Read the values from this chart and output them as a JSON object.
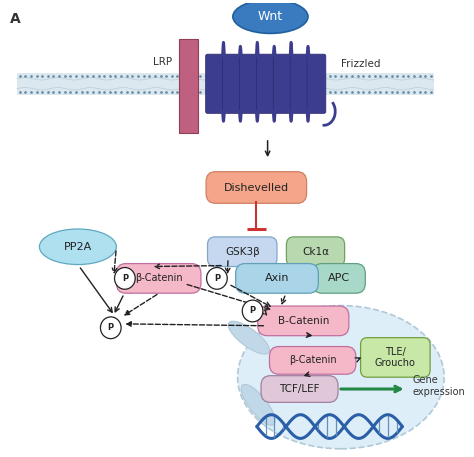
{
  "bg_color": "#f0f4f8",
  "title_label": "A",
  "lrp_color": "#c06080",
  "frizzled_color": "#3d3d8f",
  "wnt_color": "#3a7abf",
  "wnt_text": "Wnt",
  "lrp_text": "LRP",
  "frizzled_text": "Frizzled",
  "dishevelled_text": "Dishevelled",
  "dishevelled_color": "#f4a58a",
  "pp2a_text": "PP2A",
  "pp2a_color": "#aee0f0",
  "gsk3b_text": "GSK3β",
  "gsk3b_color": "#c5d8f0",
  "ck1a_text": "Ck1α",
  "ck1a_color": "#b8d8b0",
  "axin_text": "Axin",
  "axin_color": "#aad4e8",
  "apc_text": "APC",
  "apc_color": "#a8d8c8",
  "bcatenin_pink_text": "β-Catenin",
  "bcatenin_pink_color": "#f4b8c8",
  "bcatenin_b_text": "B-Catenin",
  "bcatenin_b_color": "#f4b8c8",
  "bcatenin_nucleus_text": "β-Catenin",
  "bcatenin_nucleus_color": "#f4b8c8",
  "tcflef_text": "TCF/LEF",
  "tcflef_color": "#e0c8d8",
  "tle_text": "TLE/\nGroucho",
  "tle_color": "#c8e8a8",
  "gene_expression_text": "Gene\nexpression",
  "dna_color1": "#2a5fa8",
  "dna_color2": "#2a5fa8",
  "nucleus_color": "#ddeef8",
  "nucleus_border": "#b0c8d8"
}
